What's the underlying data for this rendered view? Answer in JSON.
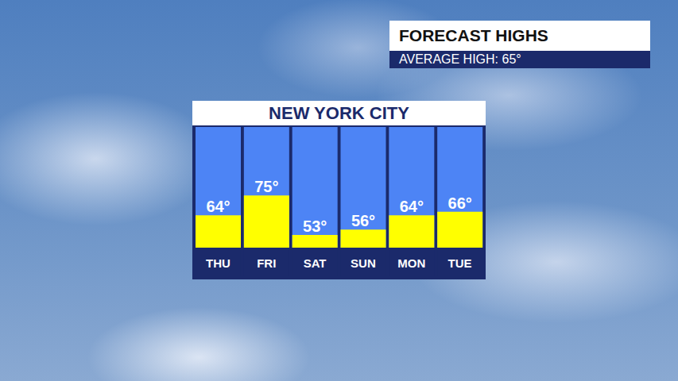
{
  "chart_data": {
    "type": "bar",
    "title": "NEW YORK CITY",
    "subtitle": "FORECAST HIGHS",
    "annotations": [
      "AVERAGE HIGH: 65°"
    ],
    "categories": [
      "THU",
      "FRI",
      "SAT",
      "SUN",
      "MON",
      "TUE"
    ],
    "values": [
      64,
      75,
      53,
      56,
      64,
      66
    ],
    "value_labels": [
      "64°",
      "75°",
      "53°",
      "56°",
      "64°",
      "66°"
    ],
    "data_labels": true,
    "color": "#ffff00",
    "ylim": [
      46,
      113
    ],
    "tick_labels": "x",
    "grid": false
  }
}
